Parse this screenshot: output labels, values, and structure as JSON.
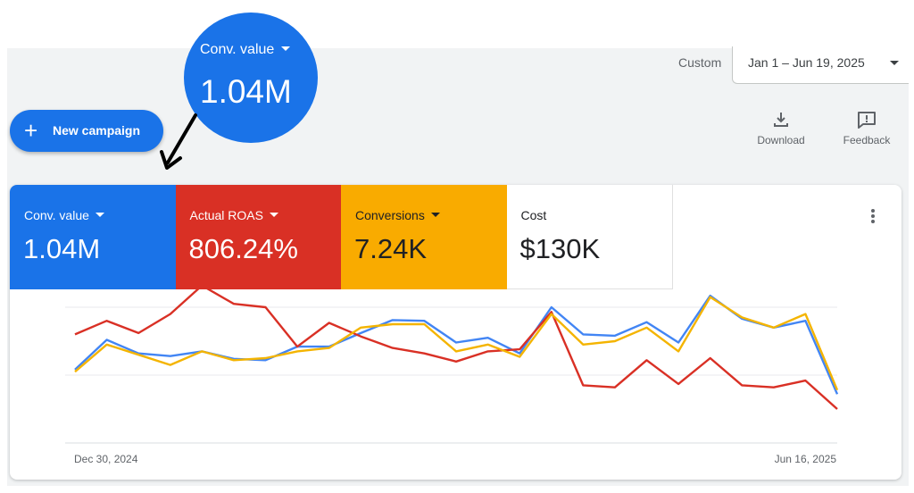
{
  "header": {
    "date_range_label": "Custom",
    "date_range_value": "Jan 1 – Jun 19, 2025",
    "new_campaign_label": "New campaign",
    "plus_glyph": "+",
    "download_label": "Download",
    "feedback_label": "Feedback"
  },
  "callout": {
    "label": "Conv. value",
    "value": "1.04M",
    "color": "#1a73e8"
  },
  "metrics": [
    {
      "label": "Conv. value",
      "value": "1.04M",
      "bg": "#1a73e8",
      "fg": "#ffffff",
      "has_dropdown": true
    },
    {
      "label": "Actual ROAS",
      "value": "806.24%",
      "bg": "#d93025",
      "fg": "#ffffff",
      "has_dropdown": true
    },
    {
      "label": "Conversions",
      "value": "7.24K",
      "bg": "#f9ab00",
      "fg": "#202124",
      "has_dropdown": true
    },
    {
      "label": "Cost",
      "value": "$130K",
      "bg": "#ffffff",
      "fg": "#202124",
      "has_dropdown": false
    }
  ],
  "icons": {
    "download": "download-icon",
    "feedback": "feedback-icon",
    "more": "more-vert-icon",
    "dropdown": "caret-down-icon"
  },
  "chart_data": {
    "type": "line",
    "x_start_label": "Dec 30, 2024",
    "x_end_label": "Jun 16, 2025",
    "grid": true,
    "y_axis_labels": false,
    "series": [
      {
        "color": "#4285f4",
        "values": [
          0.08,
          0.52,
          0.32,
          0.28,
          0.35,
          0.24,
          0.22,
          0.42,
          0.42,
          0.62,
          0.81,
          0.8,
          0.48,
          0.55,
          0.32,
          1.0,
          0.6,
          0.58,
          0.78,
          0.48,
          1.17,
          0.83,
          0.7,
          0.8,
          -0.28
        ]
      },
      {
        "color": "#d93025",
        "values": [
          0.6,
          0.8,
          0.62,
          0.9,
          1.32,
          1.05,
          1.0,
          0.42,
          0.77,
          0.57,
          0.4,
          0.32,
          0.2,
          0.35,
          0.38,
          0.93,
          -0.15,
          -0.18,
          0.22,
          -0.13,
          0.25,
          -0.15,
          -0.18,
          -0.08,
          -0.5
        ]
      },
      {
        "color": "#f4b400",
        "values": [
          0.05,
          0.45,
          0.3,
          0.15,
          0.35,
          0.22,
          0.25,
          0.35,
          0.4,
          0.7,
          0.75,
          0.75,
          0.35,
          0.45,
          0.27,
          0.9,
          0.45,
          0.5,
          0.7,
          0.35,
          1.15,
          0.85,
          0.7,
          0.9,
          -0.22
        ]
      }
    ]
  }
}
